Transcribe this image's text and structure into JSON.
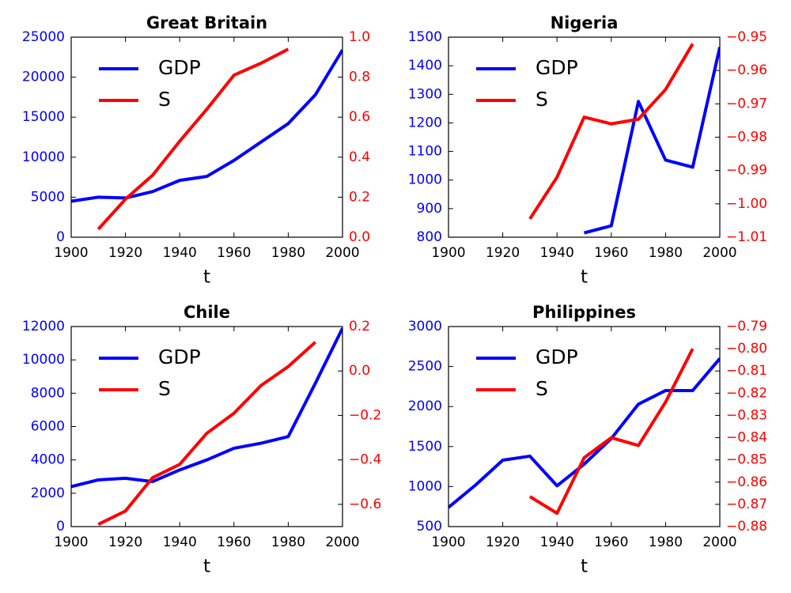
{
  "chart_data": [
    {
      "type": "line",
      "title": "Great Britain",
      "xlabel": "t",
      "x": [
        1900,
        1910,
        1920,
        1930,
        1940,
        1950,
        1960,
        1970,
        1980,
        1990,
        2000
      ],
      "xlim": [
        1900,
        2000
      ],
      "xticks": [
        1900,
        1920,
        1940,
        1960,
        1980,
        2000
      ],
      "ylim": [
        0,
        25000
      ],
      "yticks": [
        0,
        5000,
        10000,
        15000,
        20000,
        25000
      ],
      "y2lim": [
        0,
        1.0
      ],
      "y2ticks": [
        {
          "value": 0,
          "label": "0.0"
        },
        0.2,
        0.4,
        0.6,
        0.8,
        {
          "value": 1.0,
          "label": "1.0"
        }
      ],
      "legend": "upper left",
      "series": [
        {
          "name": "GDP",
          "color": "#0000ff",
          "axis": "y",
          "values": [
            4500,
            5000,
            4900,
            5700,
            7100,
            7600,
            9600,
            11900,
            14200,
            17800,
            23400
          ]
        },
        {
          "name": "S",
          "color": "#ff0000",
          "axis": "y2",
          "values": [
            null,
            0.04,
            0.19,
            0.31,
            0.48,
            0.64,
            0.81,
            0.87,
            0.94,
            null,
            null
          ]
        }
      ]
    },
    {
      "type": "line",
      "title": "Nigeria",
      "xlabel": "t",
      "x": [
        1900,
        1910,
        1920,
        1930,
        1940,
        1950,
        1960,
        1970,
        1980,
        1990,
        2000
      ],
      "xlim": [
        1900,
        2000
      ],
      "xticks": [
        1900,
        1920,
        1940,
        1960,
        1980,
        2000
      ],
      "ylim": [
        800,
        1500
      ],
      "yticks": [
        800,
        900,
        1000,
        1100,
        1200,
        1300,
        1400,
        1500
      ],
      "y2lim": [
        -1.01,
        -0.95
      ],
      "y2ticks": [
        {
          "value": -1.01,
          "label": "−1.01"
        },
        {
          "value": -1.0,
          "label": "−1.00"
        },
        {
          "value": -0.99,
          "label": "−0.99"
        },
        {
          "value": -0.98,
          "label": "−0.98"
        },
        {
          "value": -0.97,
          "label": "−0.97"
        },
        {
          "value": -0.96,
          "label": "−0.96"
        },
        {
          "value": -0.95,
          "label": "−0.95"
        }
      ],
      "legend": "upper left",
      "series": [
        {
          "name": "GDP",
          "color": "#0000ff",
          "axis": "y",
          "values": [
            null,
            null,
            null,
            null,
            null,
            815,
            840,
            1275,
            1070,
            1045,
            1465
          ]
        },
        {
          "name": "S",
          "color": "#ff0000",
          "axis": "y2",
          "values": [
            null,
            null,
            null,
            -1.0045,
            -0.992,
            -0.974,
            -0.976,
            -0.9746,
            -0.9657,
            -0.952,
            null
          ]
        }
      ]
    },
    {
      "type": "line",
      "title": "Chile",
      "xlabel": "t",
      "x": [
        1900,
        1910,
        1920,
        1930,
        1940,
        1950,
        1960,
        1970,
        1980,
        1990,
        2000
      ],
      "xlim": [
        1900,
        2000
      ],
      "xticks": [
        1900,
        1920,
        1940,
        1960,
        1980,
        2000
      ],
      "ylim": [
        0,
        12000
      ],
      "yticks": [
        0,
        2000,
        4000,
        6000,
        8000,
        10000,
        12000
      ],
      "y2lim": [
        -0.7,
        0.2
      ],
      "y2ticks": [
        {
          "value": -0.6,
          "label": "−0.6"
        },
        {
          "value": -0.4,
          "label": "−0.4"
        },
        {
          "value": -0.2,
          "label": "−0.2"
        },
        {
          "value": 0,
          "label": "0.0"
        },
        0.2
      ],
      "legend": "upper left",
      "series": [
        {
          "name": "GDP",
          "color": "#0000ff",
          "axis": "y",
          "values": [
            2400,
            2800,
            2900,
            2700,
            3400,
            4000,
            4700,
            5000,
            5400,
            8600,
            11900
          ]
        },
        {
          "name": "S",
          "color": "#ff0000",
          "axis": "y2",
          "values": [
            null,
            -0.69,
            -0.63,
            -0.48,
            -0.42,
            -0.28,
            -0.19,
            -0.065,
            0.02,
            0.13,
            null
          ]
        }
      ]
    },
    {
      "type": "line",
      "title": "Philippines",
      "xlabel": "t",
      "x": [
        1900,
        1910,
        1920,
        1930,
        1940,
        1950,
        1960,
        1970,
        1980,
        1990,
        2000
      ],
      "xlim": [
        1900,
        2000
      ],
      "xticks": [
        1900,
        1920,
        1940,
        1960,
        1980,
        2000
      ],
      "ylim": [
        500,
        3000
      ],
      "yticks": [
        500,
        1000,
        1500,
        2000,
        2500,
        3000
      ],
      "y2lim": [
        -0.88,
        -0.79
      ],
      "y2ticks": [
        {
          "value": -0.88,
          "label": "−0.88"
        },
        {
          "value": -0.87,
          "label": "−0.87"
        },
        {
          "value": -0.86,
          "label": "−0.86"
        },
        {
          "value": -0.85,
          "label": "−0.85"
        },
        {
          "value": -0.84,
          "label": "−0.84"
        },
        {
          "value": -0.83,
          "label": "−0.83"
        },
        {
          "value": -0.82,
          "label": "−0.82"
        },
        {
          "value": -0.81,
          "label": "−0.81"
        },
        {
          "value": -0.8,
          "label": "−0.80"
        },
        {
          "value": -0.79,
          "label": "−0.79"
        }
      ],
      "legend": "upper left",
      "series": [
        {
          "name": "GDP",
          "color": "#0000ff",
          "axis": "y",
          "values": [
            740,
            1020,
            1330,
            1380,
            1010,
            1280,
            1600,
            2030,
            2200,
            2200,
            2600
          ]
        },
        {
          "name": "S",
          "color": "#ff0000",
          "axis": "y2",
          "values": [
            null,
            null,
            null,
            -0.8665,
            -0.874,
            -0.849,
            -0.84,
            -0.8435,
            -0.824,
            -0.8,
            null
          ]
        }
      ]
    }
  ]
}
